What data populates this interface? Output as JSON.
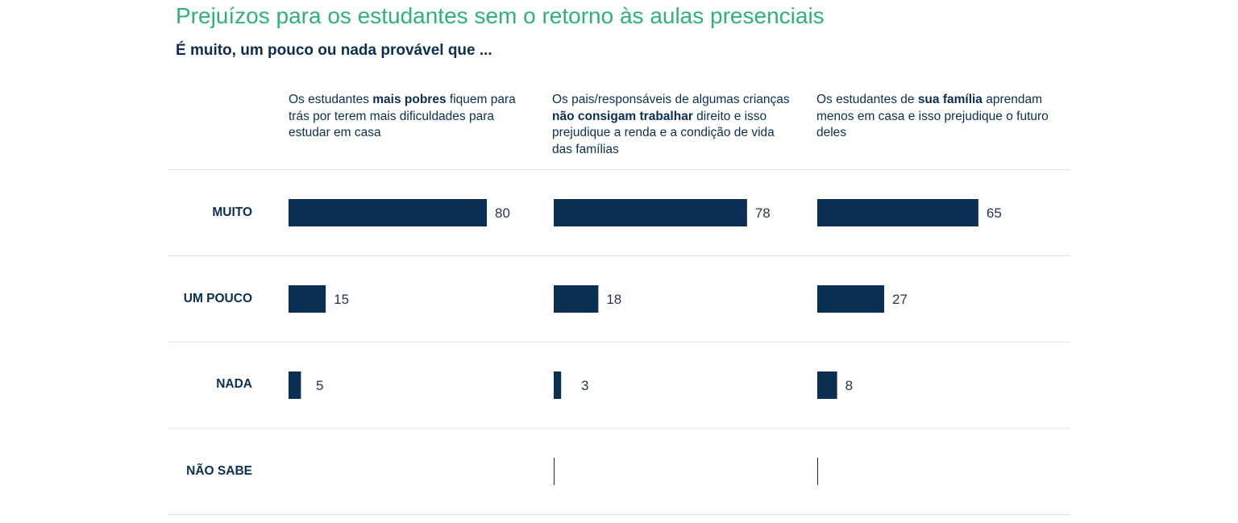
{
  "title": "Prejuízos para os estudantes sem o retorno às aulas presenciais",
  "subtitle": "É muito, um pouco ou nada provável que ...",
  "columns": [
    {
      "pre": "Os estudantes ",
      "bold": "mais pobres",
      "post": " fiquem para trás por terem mais dificuldades para estudar em casa"
    },
    {
      "pre": "Os pais/responsáveis de algumas crianças ",
      "bold": "não consigam trabalhar",
      "post": " direito e isso prejudique a renda e a condição de vida das famílias"
    },
    {
      "pre": "Os estudantes de ",
      "bold": "sua família",
      "post": "  aprendam menos em casa e isso prejudique o futuro deles"
    }
  ],
  "colors": {
    "bar": "#0b2f52",
    "title": "#2fb07f",
    "divider": "#dde3e9"
  },
  "chart_data": {
    "type": "bar",
    "orientation": "horizontal",
    "title": "Prejuízos para os estudantes sem o retorno às aulas presenciais",
    "subtitle": "É muito, um pouco ou nada provável que ...",
    "categories": [
      "MUITO",
      "UM POUCO",
      "NADA",
      "NÃO SABE"
    ],
    "xlim": [
      0,
      100
    ],
    "series": [
      {
        "values": [
          80,
          15,
          5,
          0
        ]
      },
      {
        "values": [
          78,
          18,
          3,
          0
        ]
      },
      {
        "values": [
          65,
          27,
          8,
          0
        ]
      }
    ],
    "grid": false
  }
}
